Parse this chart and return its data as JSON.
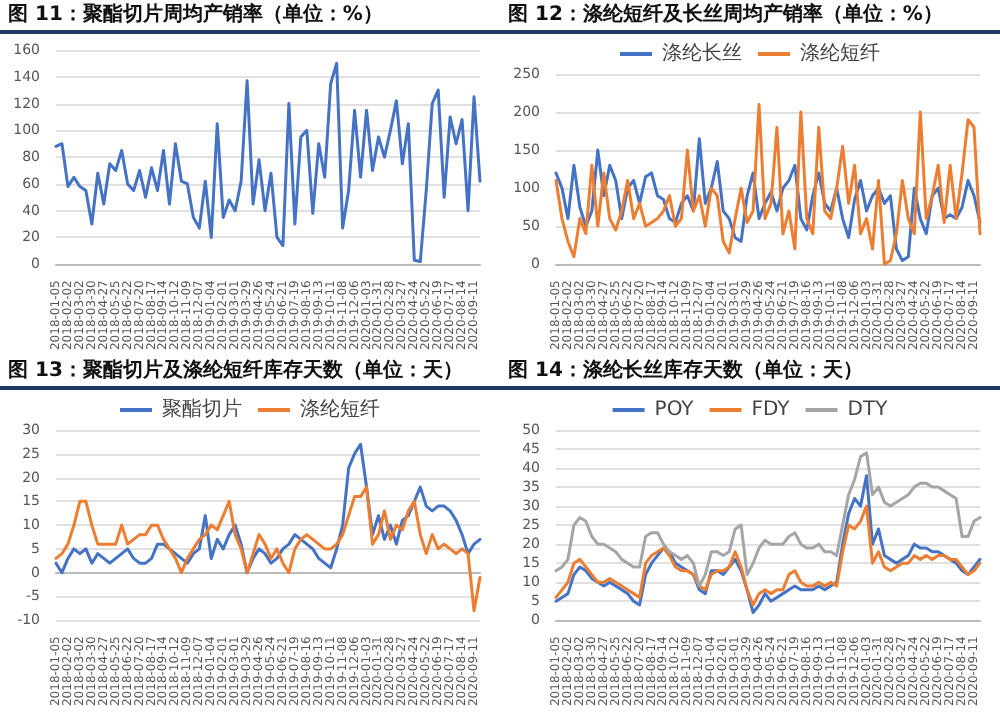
{
  "chart_data": [
    {
      "type": "line",
      "title": "图 11：聚酯切片周均产销率（单位：%）",
      "legend": false,
      "grid": "y",
      "marker": "none",
      "line_style": "solid",
      "ylim": [
        0,
        160
      ],
      "yticks": [
        0,
        20,
        40,
        60,
        80,
        100,
        120,
        140,
        160
      ],
      "categories": [
        "2018-01-05",
        null,
        "2018-02-02",
        null,
        "2018-03-02",
        null,
        "2018-03-30",
        null,
        "2018-04-27",
        null,
        "2018-05-25",
        null,
        "2018-06-22",
        null,
        "2018-07-20",
        null,
        "2018-08-17",
        null,
        "2018-09-14",
        null,
        "2018-10-12",
        null,
        "2018-11-09",
        null,
        "2018-12-07",
        null,
        "2019-01-04",
        null,
        "2019-02-01",
        null,
        "2019-03-01",
        null,
        "2019-03-29",
        null,
        "2019-04-26",
        null,
        "2019-05-24",
        null,
        "2019-06-21",
        null,
        "2019-07-19",
        null,
        "2019-08-16",
        null,
        "2019-09-13",
        null,
        "2019-10-11",
        null,
        "2019-11-08",
        null,
        "2019-12-06",
        null,
        "2020-01-03",
        null,
        "2020-01-31",
        null,
        "2020-02-28",
        null,
        "2020-03-27",
        null,
        "2020-04-24",
        null,
        "2020-05-22",
        null,
        "2020-06-19",
        null,
        "2020-07-17",
        null,
        "2020-08-14",
        null,
        "2020-09-11",
        null
      ],
      "series": [
        {
          "color": "#4472c4",
          "values": [
            88,
            90,
            58,
            65,
            58,
            55,
            30,
            68,
            45,
            75,
            70,
            85,
            60,
            55,
            70,
            50,
            72,
            55,
            85,
            45,
            90,
            62,
            60,
            35,
            27,
            62,
            20,
            105,
            35,
            48,
            40,
            62,
            137,
            45,
            78,
            40,
            68,
            20,
            14,
            120,
            30,
            95,
            100,
            38,
            90,
            65,
            135,
            150,
            27,
            55,
            115,
            65,
            115,
            70,
            95,
            80,
            100,
            122,
            75,
            105,
            3,
            2,
            55,
            120,
            130,
            50,
            110,
            90,
            108,
            40,
            125,
            62
          ]
        }
      ]
    },
    {
      "type": "line",
      "title": "图 12：涤纶短纤及长丝周均产销率（单位：%）",
      "legend": "top",
      "grid": "y",
      "marker": "none",
      "line_style": "solid",
      "ylim": [
        0,
        250
      ],
      "yticks": [
        0,
        50,
        100,
        150,
        200,
        250
      ],
      "categories": [
        "2018-01-05",
        null,
        "2018-02-02",
        null,
        "2018-03-02",
        null,
        "2018-03-30",
        null,
        "2018-04-27",
        null,
        "2018-05-25",
        null,
        "2018-06-22",
        null,
        "2018-07-20",
        null,
        "2018-08-17",
        null,
        "2018-09-14",
        null,
        "2018-10-12",
        null,
        "2018-11-09",
        null,
        "2018-12-07",
        null,
        "2019-01-04",
        null,
        "2019-02-01",
        null,
        "2019-03-01",
        null,
        "2019-03-29",
        null,
        "2019-04-26",
        null,
        "2019-05-24",
        null,
        "2019-06-21",
        null,
        "2019-07-19",
        null,
        "2019-08-16",
        null,
        "2019-09-13",
        null,
        "2019-10-11",
        null,
        "2019-11-08",
        null,
        "2019-12-06",
        null,
        "2020-01-03",
        null,
        "2020-01-31",
        null,
        "2020-02-28",
        null,
        "2020-03-27",
        null,
        "2020-04-24",
        null,
        "2020-05-22",
        null,
        "2020-06-19",
        null,
        "2020-07-17",
        null,
        "2020-08-14",
        null,
        "2020-09-11",
        null
      ],
      "series": [
        {
          "name": "涤纶长丝",
          "color": "#4472c4",
          "values": [
            120,
            100,
            60,
            130,
            75,
            50,
            70,
            150,
            90,
            130,
            110,
            60,
            100,
            110,
            80,
            115,
            120,
            90,
            85,
            60,
            55,
            80,
            90,
            70,
            165,
            80,
            100,
            135,
            70,
            60,
            35,
            30,
            90,
            120,
            60,
            80,
            95,
            70,
            100,
            110,
            130,
            60,
            45,
            90,
            120,
            80,
            70,
            100,
            60,
            35,
            85,
            110,
            70,
            90,
            100,
            80,
            90,
            20,
            5,
            10,
            100,
            60,
            40,
            90,
            100,
            60,
            65,
            60,
            75,
            110,
            90,
            55
          ]
        },
        {
          "name": "涤纶短纤",
          "color": "#ed7d31",
          "values": [
            110,
            60,
            30,
            10,
            60,
            40,
            130,
            50,
            120,
            60,
            45,
            70,
            110,
            60,
            80,
            50,
            55,
            60,
            70,
            90,
            50,
            60,
            150,
            70,
            90,
            50,
            100,
            90,
            30,
            15,
            60,
            100,
            55,
            70,
            210,
            60,
            80,
            180,
            40,
            70,
            20,
            200,
            60,
            40,
            180,
            70,
            60,
            100,
            155,
            80,
            130,
            40,
            60,
            20,
            110,
            0,
            5,
            40,
            110,
            60,
            40,
            200,
            60,
            90,
            130,
            55,
            130,
            60,
            120,
            190,
            180,
            40
          ]
        }
      ]
    },
    {
      "type": "line",
      "title": "图 13：聚酯切片及涤纶短纤库存天数（单位：天）",
      "legend": "top",
      "grid": "y",
      "marker": "none",
      "line_style": "solid",
      "ylim": [
        -10,
        30
      ],
      "yticks": [
        -10,
        -5,
        0,
        5,
        10,
        15,
        20,
        25,
        30
      ],
      "categories": [
        "2018-01-05",
        null,
        "2018-02-02",
        null,
        "2018-03-02",
        null,
        "2018-03-30",
        null,
        "2018-04-27",
        null,
        "2018-05-25",
        null,
        "2018-06-22",
        null,
        "2018-07-20",
        null,
        "2018-08-17",
        null,
        "2018-09-14",
        null,
        "2018-10-12",
        null,
        "2018-11-09",
        null,
        "2018-12-07",
        null,
        "2019-01-04",
        null,
        "2019-02-01",
        null,
        "2019-03-01",
        null,
        "2019-03-29",
        null,
        "2019-04-26",
        null,
        "2019-05-24",
        null,
        "2019-06-21",
        null,
        "2019-07-19",
        null,
        "2019-08-16",
        null,
        "2019-09-13",
        null,
        "2019-10-11",
        null,
        "2019-11-08",
        null,
        "2019-12-06",
        null,
        "2020-01-03",
        null,
        "2020-01-31",
        null,
        "2020-02-28",
        null,
        "2020-03-27",
        null,
        "2020-04-24",
        null,
        "2020-05-22",
        null,
        "2020-06-19",
        null,
        "2020-07-17",
        null,
        "2020-08-14",
        null,
        "2020-09-11",
        null
      ],
      "series": [
        {
          "name": "聚酯切片",
          "color": "#4472c4",
          "values": [
            2,
            0,
            3,
            5,
            4,
            5,
            2,
            4,
            3,
            2,
            3,
            4,
            5,
            3,
            2,
            2,
            3,
            6,
            6,
            5,
            4,
            3,
            2,
            4,
            5,
            12,
            3,
            7,
            5,
            8,
            10,
            6,
            0,
            3,
            5,
            4,
            2,
            3,
            5,
            6,
            8,
            7,
            6,
            5,
            3,
            2,
            1,
            5,
            10,
            22,
            25,
            27,
            18,
            8,
            12,
            7,
            10,
            6,
            11,
            12,
            15,
            18,
            14,
            13,
            14,
            14,
            13,
            11,
            8,
            4,
            6,
            7
          ]
        },
        {
          "name": "涤纶短纤",
          "color": "#ed7d31",
          "values": [
            3,
            4,
            6,
            10,
            15,
            15,
            10,
            6,
            6,
            6,
            6,
            10,
            6,
            7,
            8,
            8,
            10,
            10,
            7,
            5,
            3,
            0,
            3,
            5,
            7,
            8,
            10,
            9,
            12,
            15,
            8,
            5,
            0,
            4,
            8,
            6,
            3,
            5,
            2,
            0,
            5,
            7,
            8,
            7,
            6,
            5,
            5,
            6,
            8,
            12,
            16,
            16,
            18,
            6,
            8,
            13,
            7,
            10,
            9,
            13,
            15,
            8,
            4,
            8,
            5,
            6,
            5,
            4,
            5,
            4,
            -8,
            -1
          ]
        }
      ]
    },
    {
      "type": "line",
      "title": "图 14：涤纶长丝库存天数（单位：天）",
      "legend": "top",
      "grid": "y",
      "marker": "none",
      "line_style": "solid",
      "ylim": [
        0,
        50
      ],
      "yticks": [
        0,
        5,
        10,
        15,
        20,
        25,
        30,
        35,
        40,
        45,
        50
      ],
      "categories": [
        "2018-01-05",
        null,
        "2018-02-02",
        null,
        "2018-03-02",
        null,
        "2018-03-30",
        null,
        "2018-04-27",
        null,
        "2018-05-25",
        null,
        "2018-06-22",
        null,
        "2018-07-20",
        null,
        "2018-08-17",
        null,
        "2018-09-14",
        null,
        "2018-10-12",
        null,
        "2018-11-09",
        null,
        "2018-12-07",
        null,
        "2019-01-04",
        null,
        "2019-02-01",
        null,
        "2019-03-01",
        null,
        "2019-03-29",
        null,
        "2019-04-26",
        null,
        "2019-05-24",
        null,
        "2019-06-21",
        null,
        "2019-07-19",
        null,
        "2019-08-16",
        null,
        "2019-09-13",
        null,
        "2019-10-11",
        null,
        "2019-11-08",
        null,
        "2019-12-06",
        null,
        "2020-01-03",
        null,
        "2020-01-31",
        null,
        "2020-02-28",
        null,
        "2020-03-27",
        null,
        "2020-04-24",
        null,
        "2020-05-22",
        null,
        "2020-06-19",
        null,
        "2020-07-17",
        null,
        "2020-08-14",
        null,
        "2020-09-11",
        null
      ],
      "series": [
        {
          "name": "POY",
          "color": "#4472c4",
          "values": [
            5,
            6,
            7,
            12,
            14,
            13,
            11,
            10,
            9,
            10,
            9,
            8,
            7,
            5,
            4,
            12,
            15,
            17,
            19,
            18,
            15,
            14,
            13,
            12,
            8,
            7,
            13,
            13,
            12,
            14,
            16,
            13,
            8,
            2,
            4,
            7,
            5,
            6,
            7,
            8,
            9,
            8,
            8,
            8,
            9,
            8,
            9,
            10,
            20,
            28,
            32,
            30,
            38,
            20,
            24,
            17,
            16,
            15,
            16,
            17,
            20,
            19,
            19,
            18,
            18,
            17,
            16,
            15,
            13,
            12,
            14,
            16
          ]
        },
        {
          "name": "FDY",
          "color": "#ed7d31",
          "values": [
            6,
            8,
            10,
            15,
            16,
            14,
            12,
            10,
            10,
            11,
            10,
            9,
            8,
            7,
            6,
            15,
            17,
            18,
            19,
            17,
            14,
            13,
            13,
            12,
            9,
            8,
            12,
            13,
            13,
            14,
            18,
            14,
            8,
            4,
            7,
            8,
            7,
            8,
            8,
            12,
            13,
            10,
            9,
            9,
            10,
            9,
            10,
            9,
            18,
            25,
            24,
            26,
            30,
            15,
            18,
            14,
            13,
            14,
            15,
            15,
            17,
            16,
            17,
            16,
            17,
            17,
            16,
            16,
            14,
            12,
            13,
            15
          ]
        },
        {
          "name": "DTY",
          "color": "#a5a5a5",
          "values": [
            13,
            14,
            16,
            25,
            27,
            26,
            22,
            20,
            20,
            19,
            18,
            16,
            15,
            14,
            14,
            22,
            23,
            23,
            20,
            18,
            17,
            16,
            17,
            15,
            9,
            12,
            18,
            18,
            17,
            18,
            24,
            25,
            12,
            15,
            19,
            21,
            20,
            20,
            20,
            22,
            23,
            20,
            19,
            19,
            20,
            18,
            18,
            17,
            25,
            33,
            37,
            43,
            44,
            33,
            35,
            31,
            30,
            31,
            32,
            33,
            35,
            36,
            36,
            35,
            35,
            34,
            33,
            32,
            22,
            22,
            26,
            27
          ]
        }
      ]
    }
  ]
}
